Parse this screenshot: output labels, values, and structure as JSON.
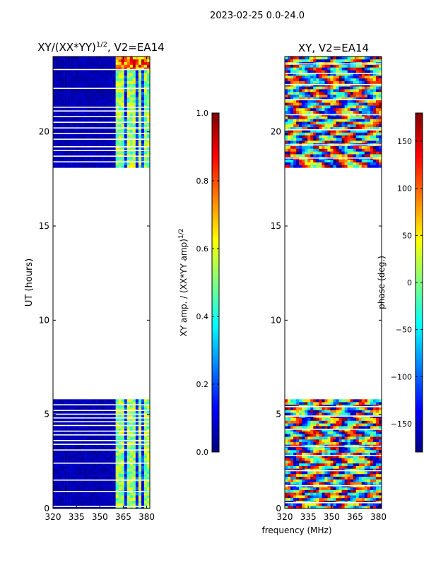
{
  "suptitle": "2023-02-25 0.0-24.0",
  "colors": {
    "jet": [
      "#00007f",
      "#0000ff",
      "#007fff",
      "#00ffff",
      "#7fff7f",
      "#ffff00",
      "#ff7f00",
      "#ff0000",
      "#7f0000"
    ],
    "background": "#ffffff",
    "axis": "#000000"
  },
  "shared": {
    "xlabel": "frequency (MHz)",
    "ylabel": "UT (hours)"
  },
  "chart_data": [
    {
      "type": "heatmap",
      "title": "XY/(XX*YY)",
      "title_sup": "1/2",
      "title_suffix": ", V2=EA14",
      "xlim": [
        320,
        382
      ],
      "ylim": [
        0,
        24
      ],
      "xticks": [
        320,
        335,
        350,
        365,
        380
      ],
      "yticks": [
        0,
        5,
        10,
        15,
        20
      ],
      "data_ut_ranges": [
        [
          0,
          5.8
        ],
        [
          18.1,
          24
        ]
      ],
      "flagged_ut_rows": [
        0.1,
        0.9,
        1.5,
        2.4,
        3.1,
        3.4,
        3.6,
        3.9,
        4.1,
        4.4,
        4.6,
        4.8,
        5.0,
        5.2,
        5.5,
        18.4,
        18.7,
        19.0,
        19.2,
        19.6,
        19.9,
        20.2,
        20.5,
        20.8,
        21.1,
        21.3,
        22.3,
        23.3
      ],
      "bright_channels_mhz": [
        362,
        365,
        369,
        371,
        376,
        380
      ],
      "colorbar": {
        "label": "XY amp. / (XX*YY amp)",
        "label_sup": "1/2",
        "range": [
          0.0,
          1.0
        ],
        "ticks": [
          "0.0",
          "0.2",
          "0.4",
          "0.6",
          "0.8",
          "1.0"
        ]
      }
    },
    {
      "type": "heatmap",
      "title": "XY, V2=EA14",
      "xlim": [
        320,
        382
      ],
      "ylim": [
        0,
        24
      ],
      "xticks": [
        320,
        335,
        350,
        365,
        380
      ],
      "yticks": [
        0,
        5,
        10,
        15,
        20
      ],
      "data_ut_ranges": [
        [
          0,
          5.8
        ],
        [
          18.1,
          24
        ]
      ],
      "flagged_ut_rows": [
        0.3,
        1.2,
        2.0,
        2.8,
        3.3,
        4.2,
        4.9,
        5.4,
        18.6,
        19.3,
        20.1,
        20.9,
        21.7,
        22.5,
        23.1,
        23.6
      ],
      "colorbar": {
        "label": "phase (deg.)",
        "range": [
          -180,
          180
        ],
        "ticks": [
          "−150",
          "−100",
          "−50",
          "0",
          "50",
          "100",
          "150"
        ]
      }
    }
  ]
}
